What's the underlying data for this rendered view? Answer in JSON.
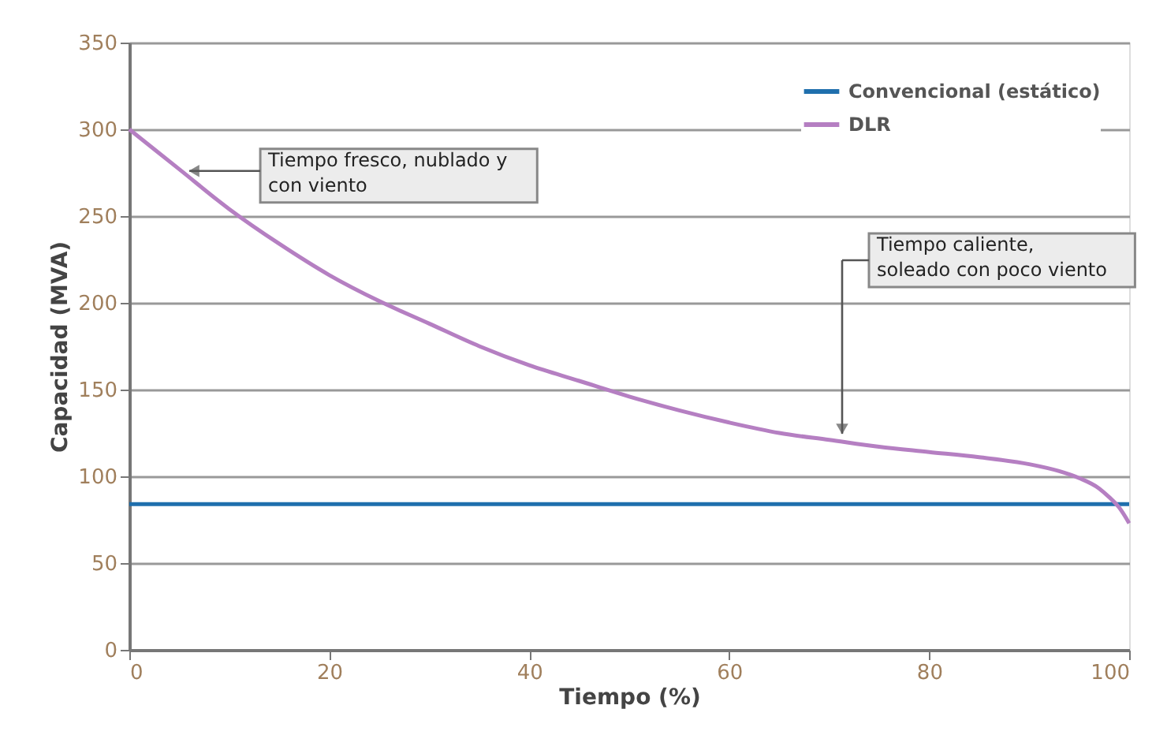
{
  "chart_data": {
    "type": "line",
    "xlabel": "Tiempo  (%)",
    "ylabel": "Capacidad  (MVA)",
    "xlim": [
      0,
      100
    ],
    "ylim": [
      0,
      350
    ],
    "xticks": [
      0,
      20,
      40,
      60,
      80,
      100
    ],
    "yticks": [
      0,
      50,
      100,
      150,
      200,
      250,
      300,
      350
    ],
    "grid": "y",
    "legend": "top right",
    "series": [
      {
        "name": "Convencional (estático)",
        "color": "#1f6fad",
        "x": [
          0,
          100
        ],
        "values": [
          84,
          84
        ]
      },
      {
        "name": "DLR",
        "color": "#b57fc2",
        "x": [
          0,
          5,
          10,
          15,
          20,
          25,
          30,
          35,
          40,
          45,
          50,
          55,
          60,
          65,
          70,
          75,
          80,
          85,
          90,
          93,
          95,
          97,
          98,
          99,
          100
        ],
        "values": [
          300,
          277,
          254,
          234,
          216,
          201,
          188,
          175,
          164,
          155,
          146,
          138,
          131,
          125,
          121,
          117,
          114,
          111,
          107,
          103,
          99,
          93,
          88,
          82,
          73
        ]
      }
    ],
    "annotations": [
      {
        "text": "Tiempo fresco, nublado y\ncon viento",
        "x": 6,
        "y": 276
      },
      "Tiempo caliente,\nsoleado con poco viento"
    ]
  }
}
